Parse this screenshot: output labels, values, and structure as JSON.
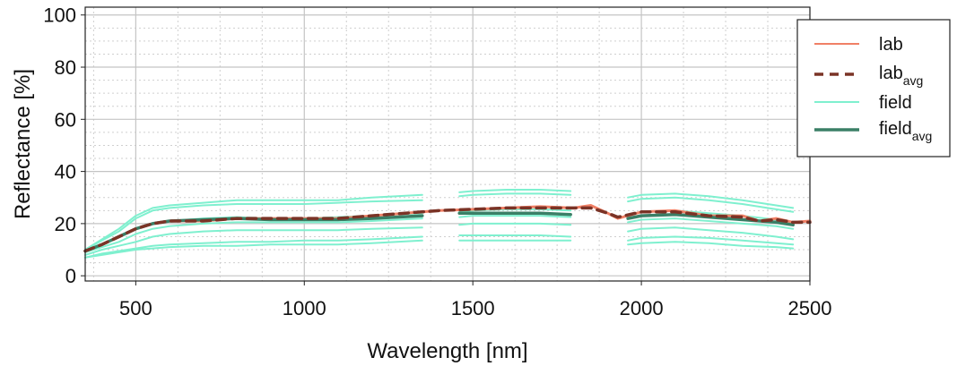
{
  "chart_data": {
    "type": "line",
    "xlabel": "Wavelength [nm]",
    "ylabel": "Reflectance [%]",
    "xlim": [
      350,
      2500
    ],
    "ylim": [
      -2,
      103
    ],
    "x_ticks": [
      500,
      1000,
      1500,
      2000,
      2500
    ],
    "y_ticks": [
      0,
      20,
      40,
      60,
      80,
      100
    ],
    "grid": true,
    "legend_position": "top-right",
    "legend": [
      {
        "key": "lab",
        "label": "lab",
        "sub": "",
        "color": "#f08066",
        "style": "solid"
      },
      {
        "key": "lab_avg",
        "label": "lab",
        "sub": "avg",
        "color": "#7a3326",
        "style": "dashed"
      },
      {
        "key": "field",
        "label": "field",
        "sub": "",
        "color": "#7ff0cf",
        "style": "solid"
      },
      {
        "key": "field_avg",
        "label": "field",
        "sub": "avg",
        "color": "#3a7f66",
        "style": "solid"
      }
    ],
    "field_gaps": [
      [
        1350,
        1460
      ],
      [
        1790,
        1960
      ]
    ],
    "series": [
      {
        "key": "field",
        "color": "#7ff0cf",
        "x": [
          350,
          400,
          450,
          500,
          550,
          600,
          700,
          800,
          900,
          1000,
          1100,
          1200,
          1350,
          1460,
          1500,
          1600,
          1700,
          1790,
          1960,
          2000,
          2100,
          2200,
          2300,
          2400,
          2450
        ],
        "y": [
          10,
          14,
          18,
          23,
          26,
          27,
          28,
          29,
          29,
          29,
          29,
          30,
          31,
          32,
          32.5,
          33,
          33,
          32.5,
          30,
          31,
          31.5,
          30.5,
          29,
          27,
          26
        ]
      },
      {
        "key": "field",
        "color": "#7ff0cf",
        "x": [
          350,
          400,
          450,
          500,
          550,
          600,
          700,
          800,
          900,
          1000,
          1100,
          1200,
          1350,
          1460,
          1500,
          1600,
          1700,
          1790,
          1960,
          2000,
          2100,
          2200,
          2300,
          2400,
          2450
        ],
        "y": [
          10,
          13.5,
          17,
          22,
          25,
          26,
          27,
          27.5,
          27.5,
          27.5,
          28,
          28.5,
          29,
          30.5,
          31,
          31.5,
          31.5,
          31,
          28.5,
          29.5,
          30,
          29,
          27.5,
          25.5,
          24.5
        ]
      },
      {
        "key": "field",
        "color": "#7ff0cf",
        "x": [
          350,
          400,
          450,
          500,
          550,
          600,
          700,
          800,
          900,
          1000,
          1100,
          1200,
          1350,
          1460,
          1500,
          1600,
          1700,
          1790,
          1960,
          2000,
          2100,
          2200,
          2300,
          2400,
          2450
        ],
        "y": [
          9,
          12,
          15,
          18,
          20,
          21,
          22,
          22.5,
          22,
          22,
          22.5,
          23,
          24,
          24.5,
          25,
          25.5,
          25.5,
          25,
          23,
          24.5,
          25,
          24,
          23,
          21.5,
          20.5
        ]
      },
      {
        "key": "field",
        "color": "#7ff0cf",
        "x": [
          350,
          400,
          450,
          500,
          550,
          600,
          700,
          800,
          900,
          1000,
          1100,
          1200,
          1350,
          1460,
          1500,
          1600,
          1700,
          1790,
          1960,
          2000,
          2100,
          2200,
          2300,
          2400,
          2450
        ],
        "y": [
          9,
          11,
          13,
          16,
          18,
          19,
          20,
          20.5,
          20.5,
          20.5,
          20.5,
          21,
          22,
          22.5,
          23,
          23,
          23,
          22.5,
          20.5,
          21.5,
          22,
          21,
          20,
          19,
          18
        ]
      },
      {
        "key": "field",
        "color": "#7ff0cf",
        "x": [
          350,
          400,
          450,
          500,
          550,
          600,
          700,
          800,
          900,
          1000,
          1100,
          1200,
          1350,
          1460,
          1500,
          1600,
          1700,
          1790,
          1960,
          2000,
          2100,
          2200,
          2300,
          2400,
          2450
        ],
        "y": [
          8,
          10,
          11.5,
          13,
          15,
          16,
          17,
          17.5,
          17.5,
          17.5,
          17.5,
          18,
          18.5,
          19.5,
          20,
          20,
          20,
          19.5,
          17,
          18,
          18.5,
          17.5,
          16.5,
          15,
          14
        ]
      },
      {
        "key": "field",
        "color": "#7ff0cf",
        "x": [
          350,
          400,
          450,
          500,
          550,
          600,
          700,
          800,
          900,
          1000,
          1100,
          1200,
          1350,
          1460,
          1500,
          1600,
          1700,
          1790,
          1960,
          2000,
          2100,
          2200,
          2300,
          2400,
          2450
        ],
        "y": [
          7,
          8.5,
          9.5,
          10.5,
          11.5,
          12,
          12.5,
          13,
          13,
          13.5,
          13.5,
          14,
          15,
          15.5,
          15.5,
          15.5,
          15.5,
          15,
          13.5,
          14.5,
          15,
          14.5,
          13.5,
          12.5,
          12
        ]
      },
      {
        "key": "field",
        "color": "#7ff0cf",
        "x": [
          350,
          400,
          450,
          500,
          550,
          600,
          700,
          800,
          900,
          1000,
          1100,
          1200,
          1350,
          1460,
          1500,
          1600,
          1700,
          1790,
          1960,
          2000,
          2100,
          2200,
          2300,
          2400,
          2450
        ],
        "y": [
          7,
          8,
          9,
          10,
          10.5,
          11,
          11.5,
          11.5,
          12,
          12,
          12,
          12.5,
          13.5,
          13.5,
          13.5,
          13.5,
          13.5,
          13.5,
          12,
          12.5,
          13,
          12.5,
          11.5,
          11,
          10.5
        ]
      },
      {
        "key": "lab",
        "color": "#f08066",
        "x": [
          350,
          400,
          450,
          500,
          550,
          600,
          700,
          800,
          900,
          1000,
          1100,
          1200,
          1300,
          1400,
          1500,
          1600,
          1700,
          1800,
          1850,
          1900,
          1930,
          2000,
          2100,
          2200,
          2300,
          2350,
          2400,
          2450,
          2500
        ],
        "y": [
          9.5,
          12,
          15,
          18,
          20,
          21,
          21,
          22,
          22,
          22,
          22,
          23,
          24,
          25,
          25.5,
          26,
          26.5,
          26,
          27,
          24,
          22,
          24.5,
          25,
          23,
          23,
          21,
          22,
          20.5,
          21
        ]
      },
      {
        "key": "lab_avg",
        "color": "#7a3326",
        "dashed": true,
        "x": [
          350,
          400,
          450,
          500,
          550,
          600,
          700,
          800,
          900,
          1000,
          1100,
          1200,
          1300,
          1400,
          1500,
          1600,
          1700,
          1800,
          1850,
          1900,
          1930,
          2000,
          2100,
          2200,
          2300,
          2350,
          2400,
          2450,
          2500
        ],
        "y": [
          9.5,
          12,
          15,
          18,
          20,
          21,
          21,
          22,
          22,
          22,
          22,
          23,
          24,
          25,
          25.5,
          26,
          26,
          26,
          26,
          24,
          22.5,
          24.5,
          24.5,
          23,
          22.5,
          21,
          21.5,
          20.5,
          20.5
        ]
      },
      {
        "key": "field_avg",
        "color": "#3a7f66",
        "x": [
          350,
          400,
          450,
          500,
          550,
          600,
          700,
          800,
          900,
          1000,
          1100,
          1200,
          1350,
          1460,
          1500,
          1600,
          1700,
          1790,
          1960,
          2000,
          2100,
          2200,
          2300,
          2400,
          2450
        ],
        "y": [
          9.5,
          12,
          15,
          18,
          20,
          21,
          21.5,
          22,
          21.5,
          21.5,
          21.5,
          22,
          23,
          24,
          24,
          24,
          24,
          23.5,
          22,
          23,
          23.5,
          22.5,
          21.5,
          20.5,
          19.5
        ]
      }
    ]
  }
}
